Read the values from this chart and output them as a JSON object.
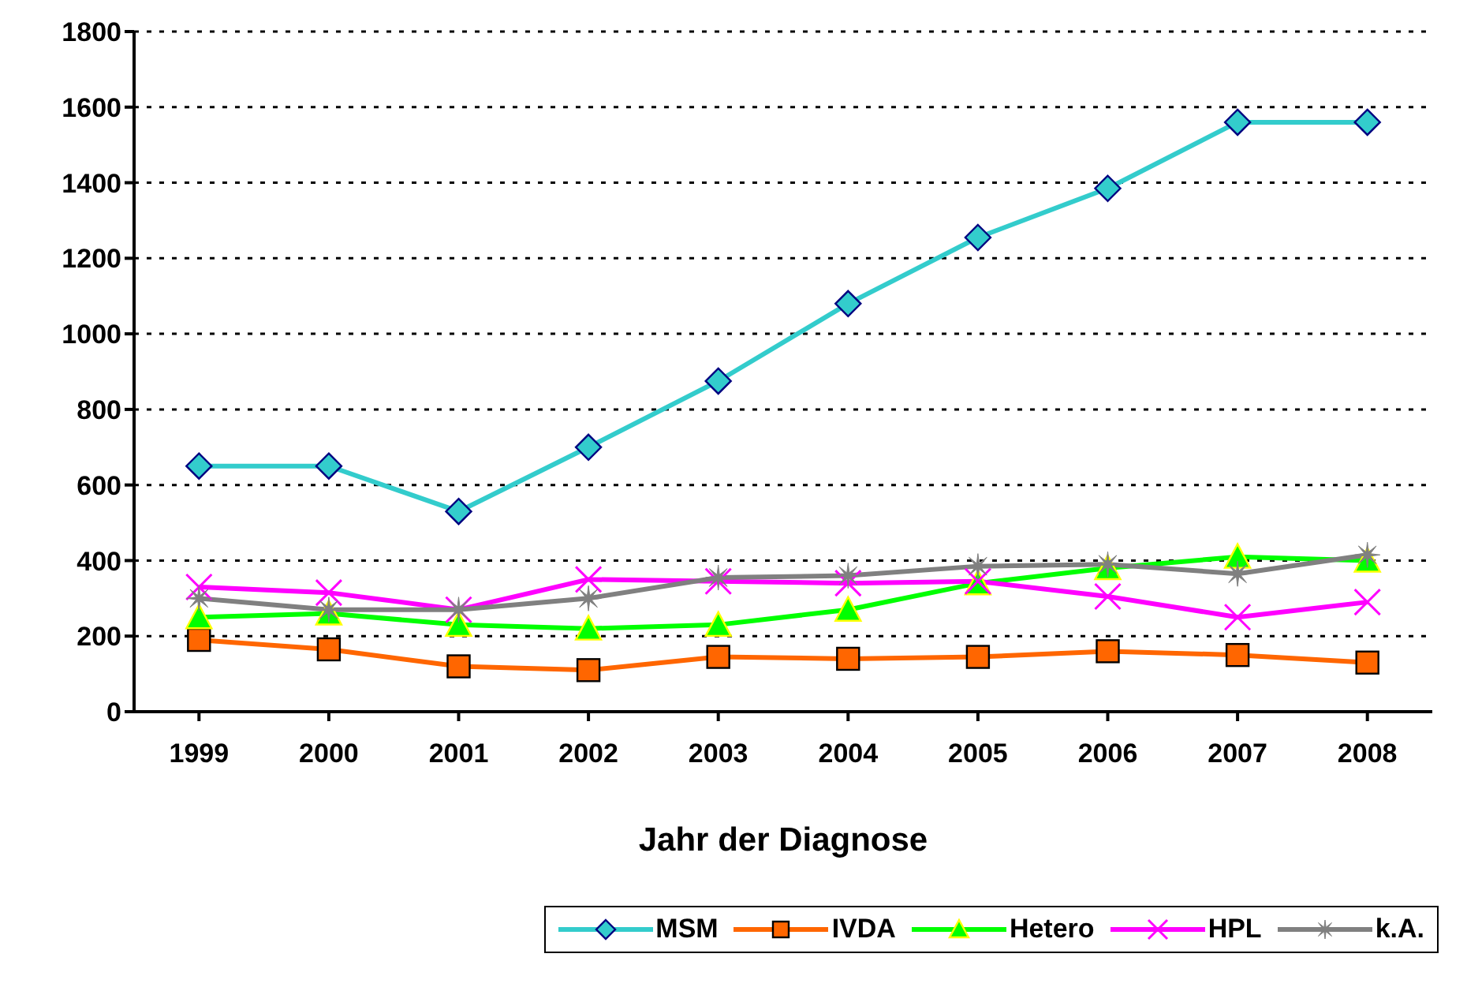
{
  "chart_data": {
    "type": "line",
    "xlabel": "Jahr der Diagnose",
    "categories": [
      "1999",
      "2000",
      "2001",
      "2002",
      "2003",
      "2004",
      "2005",
      "2006",
      "2007",
      "2008"
    ],
    "series": [
      {
        "name": "MSM",
        "color": "#33cccc",
        "marker": "diamond",
        "values": [
          650,
          650,
          530,
          700,
          875,
          1080,
          1255,
          1385,
          1560,
          1560
        ]
      },
      {
        "name": "IVDA",
        "color": "#ff6600",
        "marker": "square",
        "values": [
          190,
          165,
          120,
          110,
          145,
          140,
          145,
          160,
          150,
          130
        ]
      },
      {
        "name": "Hetero",
        "color": "#00ff00",
        "marker": "triangle",
        "values": [
          250,
          260,
          230,
          220,
          230,
          270,
          340,
          380,
          410,
          400
        ]
      },
      {
        "name": "HPL",
        "color": "#ff00ff",
        "marker": "cross",
        "values": [
          330,
          315,
          270,
          350,
          345,
          340,
          345,
          305,
          250,
          290
        ]
      },
      {
        "name": "k.A.",
        "color": "#808080",
        "marker": "star",
        "values": [
          300,
          270,
          270,
          300,
          355,
          360,
          385,
          390,
          365,
          415
        ]
      }
    ],
    "ylim": [
      0,
      1800
    ],
    "yticks": [
      0,
      200,
      400,
      600,
      800,
      1000,
      1200,
      1400,
      1600,
      1800
    ],
    "grid": "y",
    "legend": "bottom",
    "line_style": "solid"
  }
}
